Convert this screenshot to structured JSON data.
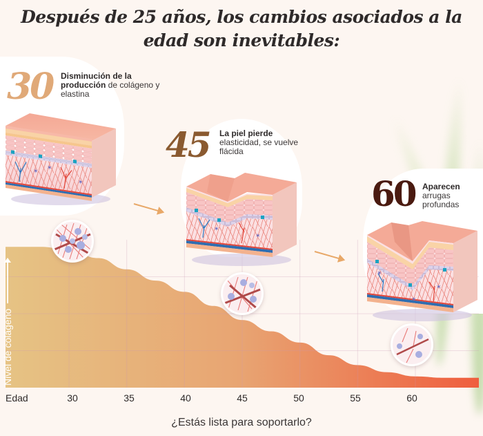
{
  "title": {
    "line1": "Después de 25 años, los cambios asociados a la",
    "line2": "edad son inevitables:"
  },
  "stages": [
    {
      "age": "30",
      "bold": "Disminución de la producción",
      "text": " de colágeno y elastina",
      "skin": "smooth",
      "age_color": "#e0a978"
    },
    {
      "age": "45",
      "bold": "La piel pierde",
      "text": " elasticidad, se vuelve flácida",
      "skin": "fine-wrinkle",
      "age_color": "#8a5a30"
    },
    {
      "age": "60",
      "bold": "Aparecen",
      "text": " arrugas profundas",
      "skin": "deep-wrinkle",
      "age_color": "#4a1a10"
    }
  ],
  "chart_data": {
    "type": "area",
    "title": "",
    "xlabel": "Edad",
    "ylabel": "Nivel de colágeno",
    "x_ticks": [
      "30",
      "35",
      "40",
      "45",
      "50",
      "55",
      "60"
    ],
    "x": [
      25,
      27.5,
      30,
      32.5,
      35,
      37.5,
      40,
      42.5,
      45,
      47.5,
      50,
      52.5,
      55,
      57.5,
      60,
      62.5,
      65
    ],
    "values": [
      100,
      100,
      98,
      92,
      84,
      76,
      68,
      58,
      48,
      40,
      32,
      23,
      16,
      11,
      8,
      7,
      7
    ],
    "xlim": [
      24.5,
      65.5
    ],
    "ylim": [
      0,
      105
    ],
    "grid": true,
    "gradient": [
      "#e6c384",
      "#e8a472",
      "#ef5e3e"
    ]
  },
  "footer": "¿Estás lista para soportarlo?",
  "icons": {
    "progress_arrow": "arrow-right",
    "microscope_view": "collagen-fibers-circle"
  }
}
